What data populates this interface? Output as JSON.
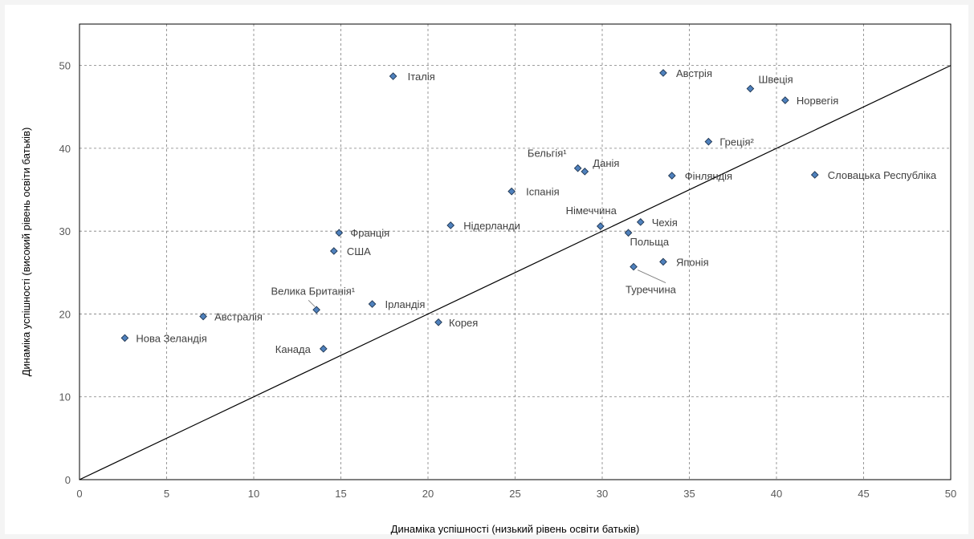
{
  "chart_data": {
    "type": "scatter",
    "title": "",
    "xlabel": "Динаміка успішності (низький рівень освіти батьків)",
    "ylabel": "Динаміка успішності (високий рівень освіти батьків)",
    "xlim": [
      0,
      50
    ],
    "ylim": [
      0,
      55
    ],
    "x_ticks": [
      "0",
      "5",
      "10",
      "15",
      "20",
      "25",
      "30",
      "35",
      "40",
      "45",
      "50"
    ],
    "y_ticks": [
      "0",
      "10",
      "20",
      "30",
      "40",
      "50"
    ],
    "grid": true,
    "legend": "none",
    "reference_line": [
      [
        0,
        0
      ],
      [
        50,
        50
      ]
    ],
    "marker_color": "#4f81bd",
    "points": [
      {
        "label": "Італія",
        "x": 18.0,
        "y": 48.7
      },
      {
        "label": "Австрія",
        "x": 33.5,
        "y": 49.1
      },
      {
        "label": "Швеція",
        "x": 38.5,
        "y": 47.2
      },
      {
        "label": "Норвегія",
        "x": 40.5,
        "y": 45.8
      },
      {
        "label": "Греція²",
        "x": 36.1,
        "y": 40.8
      },
      {
        "label": "Бельгія¹",
        "x": 28.6,
        "y": 37.6
      },
      {
        "label": "Данія",
        "x": 29.0,
        "y": 37.2
      },
      {
        "label": "Фінляндія",
        "x": 34.0,
        "y": 36.7
      },
      {
        "label": "Словацька Республіка",
        "x": 42.2,
        "y": 36.8
      },
      {
        "label": "Іспанія",
        "x": 24.8,
        "y": 34.8
      },
      {
        "label": "Німеччина",
        "x": 29.9,
        "y": 30.6
      },
      {
        "label": "Чехія",
        "x": 32.2,
        "y": 31.1
      },
      {
        "label": "Польща",
        "x": 31.5,
        "y": 29.8
      },
      {
        "label": "Нідерланди",
        "x": 21.3,
        "y": 30.7
      },
      {
        "label": "Франція",
        "x": 14.9,
        "y": 29.8
      },
      {
        "label": "США",
        "x": 14.6,
        "y": 27.6
      },
      {
        "label": "Японія",
        "x": 33.5,
        "y": 26.3
      },
      {
        "label": "Туреччина",
        "x": 31.8,
        "y": 25.7
      },
      {
        "label": "Велика Британія¹",
        "x": 13.6,
        "y": 20.5
      },
      {
        "label": "Ірландія",
        "x": 16.8,
        "y": 21.2
      },
      {
        "label": "Австралія",
        "x": 7.1,
        "y": 19.7
      },
      {
        "label": "Корея",
        "x": 20.6,
        "y": 19.0
      },
      {
        "label": "Нова Зеландія",
        "x": 2.6,
        "y": 17.1
      },
      {
        "label": "Канада",
        "x": 14.0,
        "y": 15.8
      }
    ]
  }
}
